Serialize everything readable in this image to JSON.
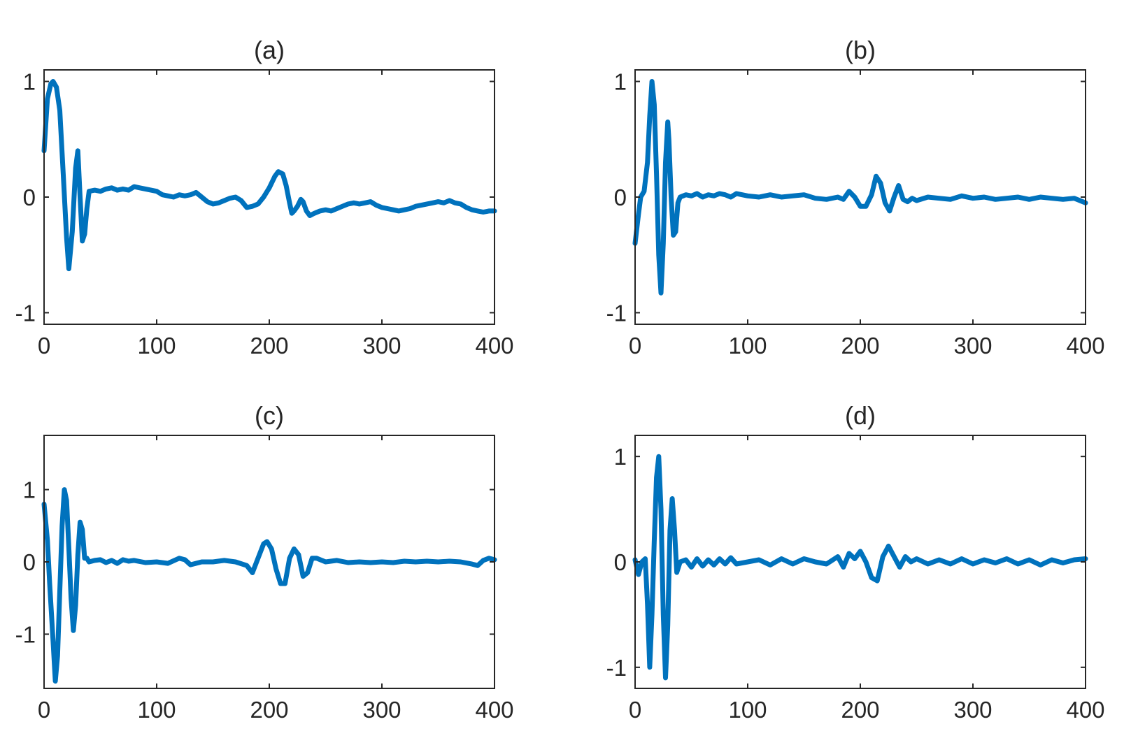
{
  "colors": {
    "line": "#0072BD",
    "axis": "#262626",
    "background": "#ffffff"
  },
  "chart_data": [
    {
      "type": "line",
      "title": "(a)",
      "xlim": [
        0,
        400
      ],
      "ylim": [
        -1.1,
        1.1
      ],
      "xticks": [
        0,
        100,
        200,
        300,
        400
      ],
      "xtick_labels": [
        "0",
        "100",
        "200",
        "300",
        "400"
      ],
      "yticks": [
        -1,
        0,
        1
      ],
      "ytick_labels": [
        "-1",
        "0",
        "1"
      ],
      "grid": false,
      "series": [
        {
          "x": [
            0,
            3,
            6,
            8,
            11,
            14,
            17,
            20,
            22,
            25,
            28,
            30,
            32,
            34,
            36,
            38,
            40,
            45,
            50,
            55,
            60,
            65,
            70,
            75,
            80,
            85,
            90,
            95,
            100,
            105,
            110,
            115,
            120,
            125,
            130,
            135,
            140,
            145,
            150,
            155,
            160,
            165,
            170,
            175,
            180,
            185,
            190,
            195,
            200,
            205,
            208,
            212,
            215,
            218,
            220,
            222,
            225,
            228,
            230,
            233,
            236,
            240,
            245,
            250,
            255,
            260,
            265,
            270,
            275,
            280,
            285,
            290,
            295,
            300,
            305,
            310,
            315,
            320,
            325,
            330,
            335,
            340,
            345,
            350,
            355,
            360,
            365,
            370,
            375,
            380,
            385,
            390,
            395,
            400
          ],
          "y": [
            0.4,
            0.85,
            0.98,
            1.0,
            0.95,
            0.75,
            0.2,
            -0.35,
            -0.62,
            -0.3,
            0.25,
            0.4,
            0.0,
            -0.38,
            -0.32,
            -0.1,
            0.05,
            0.06,
            0.05,
            0.07,
            0.08,
            0.06,
            0.07,
            0.06,
            0.09,
            0.08,
            0.07,
            0.06,
            0.05,
            0.02,
            0.01,
            0.0,
            0.02,
            0.01,
            0.02,
            0.04,
            0.0,
            -0.04,
            -0.06,
            -0.05,
            -0.03,
            -0.01,
            0.0,
            -0.03,
            -0.09,
            -0.08,
            -0.06,
            0.0,
            0.08,
            0.18,
            0.22,
            0.2,
            0.1,
            -0.05,
            -0.14,
            -0.12,
            -0.08,
            -0.02,
            -0.04,
            -0.12,
            -0.16,
            -0.14,
            -0.12,
            -0.11,
            -0.12,
            -0.1,
            -0.08,
            -0.06,
            -0.05,
            -0.06,
            -0.05,
            -0.04,
            -0.07,
            -0.09,
            -0.1,
            -0.11,
            -0.12,
            -0.11,
            -0.1,
            -0.08,
            -0.07,
            -0.06,
            -0.05,
            -0.04,
            -0.05,
            -0.03,
            -0.05,
            -0.06,
            -0.09,
            -0.11,
            -0.12,
            -0.13,
            -0.12,
            -0.12
          ]
        }
      ]
    },
    {
      "type": "line",
      "title": "(b)",
      "xlim": [
        0,
        400
      ],
      "ylim": [
        -1.1,
        1.1
      ],
      "xticks": [
        0,
        100,
        200,
        300,
        400
      ],
      "xtick_labels": [
        "0",
        "100",
        "200",
        "300",
        "400"
      ],
      "yticks": [
        -1,
        0,
        1
      ],
      "ytick_labels": [
        "-1",
        "0",
        "1"
      ],
      "grid": false,
      "series": [
        {
          "x": [
            0,
            3,
            5,
            8,
            11,
            13,
            15,
            17,
            19,
            21,
            23,
            25,
            27,
            29,
            30,
            32,
            34,
            36,
            38,
            40,
            45,
            50,
            55,
            60,
            65,
            70,
            75,
            80,
            85,
            90,
            95,
            100,
            110,
            120,
            130,
            140,
            150,
            160,
            170,
            180,
            185,
            190,
            195,
            200,
            205,
            210,
            214,
            218,
            222,
            226,
            230,
            234,
            238,
            242,
            246,
            250,
            260,
            270,
            280,
            290,
            300,
            310,
            320,
            330,
            340,
            350,
            360,
            370,
            380,
            390,
            400
          ],
          "y": [
            -0.4,
            -0.15,
            0.0,
            0.05,
            0.3,
            0.7,
            1.0,
            0.8,
            0.2,
            -0.5,
            -0.83,
            -0.4,
            0.3,
            0.65,
            0.5,
            0.0,
            -0.33,
            -0.3,
            -0.05,
            0.0,
            0.02,
            0.01,
            0.03,
            0.0,
            0.02,
            0.01,
            0.03,
            0.02,
            0.0,
            0.03,
            0.02,
            0.01,
            0.0,
            0.02,
            0.0,
            0.01,
            0.02,
            -0.01,
            -0.02,
            0.0,
            -0.02,
            0.05,
            0.0,
            -0.08,
            -0.08,
            0.02,
            0.18,
            0.12,
            -0.05,
            -0.12,
            0.0,
            0.1,
            -0.02,
            -0.04,
            -0.01,
            -0.03,
            0.0,
            -0.01,
            -0.02,
            0.01,
            -0.01,
            0.0,
            -0.02,
            -0.01,
            0.0,
            -0.02,
            0.0,
            -0.01,
            -0.02,
            -0.01,
            -0.05
          ]
        }
      ]
    },
    {
      "type": "line",
      "title": "(c)",
      "xlim": [
        0,
        400
      ],
      "ylim": [
        -1.75,
        1.75
      ],
      "xticks": [
        0,
        100,
        200,
        300,
        400
      ],
      "xtick_labels": [
        "0",
        "100",
        "200",
        "300",
        "400"
      ],
      "yticks": [
        -1,
        0,
        1
      ],
      "ytick_labels": [
        "-1",
        "0",
        "1"
      ],
      "grid": false,
      "series": [
        {
          "x": [
            0,
            3,
            5,
            8,
            10,
            12,
            14,
            16,
            18,
            20,
            22,
            24,
            26,
            28,
            30,
            32,
            34,
            36,
            38,
            40,
            45,
            50,
            55,
            60,
            65,
            70,
            75,
            80,
            90,
            100,
            110,
            120,
            125,
            130,
            140,
            150,
            160,
            170,
            180,
            185,
            190,
            195,
            198,
            202,
            206,
            210,
            214,
            218,
            222,
            226,
            230,
            234,
            238,
            242,
            250,
            260,
            270,
            280,
            290,
            300,
            310,
            320,
            330,
            340,
            350,
            360,
            370,
            380,
            385,
            390,
            395,
            400
          ],
          "y": [
            0.8,
            0.3,
            -0.3,
            -1.1,
            -1.65,
            -1.3,
            -0.4,
            0.5,
            1.0,
            0.85,
            0.2,
            -0.5,
            -0.95,
            -0.6,
            0.1,
            0.55,
            0.45,
            0.05,
            0.05,
            0.0,
            0.02,
            0.03,
            -0.01,
            0.02,
            -0.02,
            0.03,
            0.01,
            0.02,
            -0.01,
            0.0,
            -0.02,
            0.05,
            0.03,
            -0.04,
            0.0,
            0.0,
            0.02,
            0.0,
            -0.05,
            -0.15,
            0.05,
            0.25,
            0.28,
            0.18,
            -0.1,
            -0.3,
            -0.3,
            0.05,
            0.18,
            0.1,
            -0.2,
            -0.15,
            0.05,
            0.05,
            0.0,
            0.02,
            -0.01,
            0.0,
            -0.01,
            0.0,
            -0.01,
            0.01,
            0.0,
            0.01,
            0.0,
            0.01,
            0.0,
            -0.03,
            -0.05,
            0.02,
            0.05,
            0.03
          ]
        }
      ]
    },
    {
      "type": "line",
      "title": "(d)",
      "xlim": [
        0,
        400
      ],
      "ylim": [
        -1.2,
        1.2
      ],
      "xticks": [
        0,
        100,
        200,
        300,
        400
      ],
      "xtick_labels": [
        "0",
        "100",
        "200",
        "300",
        "400"
      ],
      "yticks": [
        -1,
        0,
        1
      ],
      "ytick_labels": [
        "-1",
        "0",
        "1"
      ],
      "grid": false,
      "series": [
        {
          "x": [
            0,
            3,
            6,
            9,
            11,
            13,
            15,
            17,
            19,
            21,
            23,
            25,
            27,
            29,
            31,
            33,
            35,
            37,
            40,
            45,
            50,
            55,
            60,
            65,
            70,
            75,
            80,
            85,
            90,
            100,
            110,
            120,
            130,
            140,
            150,
            160,
            170,
            180,
            185,
            190,
            195,
            200,
            205,
            210,
            215,
            220,
            225,
            230,
            235,
            240,
            245,
            250,
            260,
            270,
            280,
            290,
            300,
            310,
            320,
            330,
            340,
            350,
            360,
            370,
            380,
            390,
            400
          ],
          "y": [
            0.02,
            -0.12,
            0.0,
            0.03,
            -0.4,
            -1.0,
            -0.5,
            0.2,
            0.8,
            1.0,
            0.5,
            -0.5,
            -1.1,
            -0.6,
            0.3,
            0.6,
            0.3,
            -0.1,
            0.0,
            0.02,
            -0.05,
            0.03,
            -0.04,
            0.02,
            -0.03,
            0.03,
            -0.02,
            0.04,
            -0.02,
            0.0,
            0.02,
            -0.03,
            0.03,
            -0.02,
            0.03,
            0.0,
            -0.02,
            0.05,
            -0.05,
            0.08,
            0.03,
            0.1,
            0.0,
            -0.15,
            -0.18,
            0.05,
            0.15,
            0.05,
            -0.05,
            0.05,
            0.0,
            0.03,
            -0.02,
            0.02,
            -0.02,
            0.03,
            -0.02,
            0.02,
            -0.01,
            0.03,
            -0.02,
            0.02,
            -0.03,
            0.02,
            -0.01,
            0.02,
            0.03
          ]
        }
      ]
    }
  ]
}
